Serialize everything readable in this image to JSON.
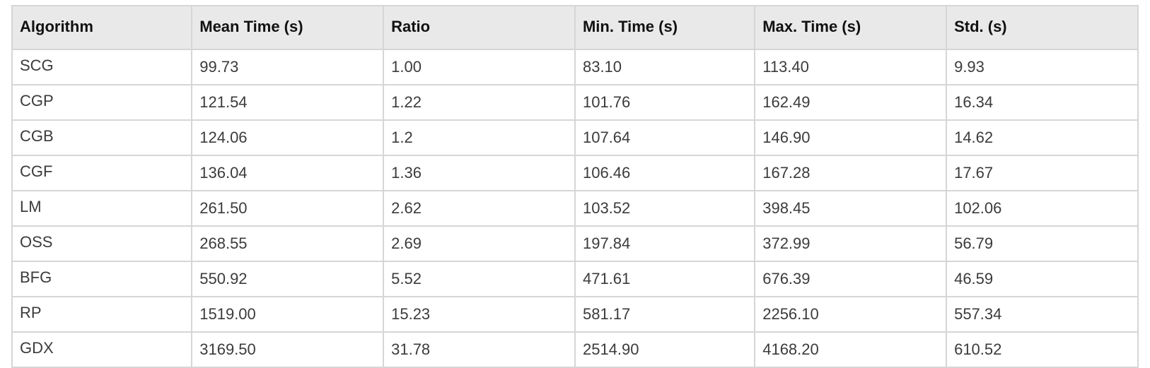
{
  "table": {
    "headers": [
      "Algorithm",
      "Mean Time (s)",
      "Ratio",
      "Min. Time (s)",
      "Max. Time (s)",
      "Std. (s)"
    ],
    "rows": [
      [
        "SCG",
        "99.73",
        "1.00",
        "83.10",
        "113.40",
        "9.93"
      ],
      [
        "CGP",
        "121.54",
        "1.22",
        "101.76",
        "162.49",
        "16.34"
      ],
      [
        "CGB",
        "124.06",
        "1.2",
        "107.64",
        "146.90",
        "14.62"
      ],
      [
        "CGF",
        "136.04",
        "1.36",
        "106.46",
        "167.28",
        "17.67"
      ],
      [
        "LM",
        "261.50",
        "2.62",
        "103.52",
        "398.45",
        "102.06"
      ],
      [
        "OSS",
        "268.55",
        "2.69",
        "197.84",
        "372.99",
        "56.79"
      ],
      [
        "BFG",
        "550.92",
        "5.52",
        "471.61",
        "676.39",
        "46.59"
      ],
      [
        "RP",
        "1519.00",
        "15.23",
        "581.17",
        "2256.10",
        "557.34"
      ],
      [
        "GDX",
        "3169.50",
        "31.78",
        "2514.90",
        "4168.20",
        "610.52"
      ]
    ]
  },
  "colors": {
    "header_bg": "#e9e9e9",
    "border": "#d6d6d6",
    "header_text": "#111111",
    "cell_text": "#3b3b3b"
  }
}
